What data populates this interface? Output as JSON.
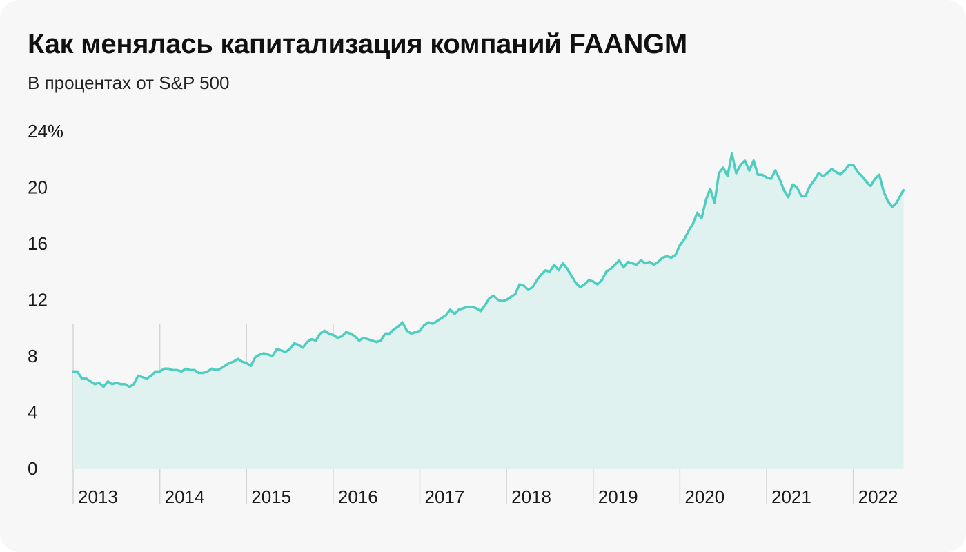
{
  "header": {
    "title": "Как менялась капитализация компаний FAANGM",
    "subtitle": "В процентах от S&P 500"
  },
  "chart_data": {
    "type": "area",
    "title": "Как менялась капитализация компаний FAANGM",
    "subtitle": "В процентах от S&P 500",
    "xlabel": "",
    "ylabel": "",
    "ylim": [
      0,
      24
    ],
    "y_ticks": [
      0,
      4,
      8,
      12,
      16,
      20,
      24
    ],
    "y_tick_labels": [
      "0",
      "4",
      "8",
      "12",
      "16",
      "20",
      "24%"
    ],
    "x_tick_labels": [
      "2013",
      "2014",
      "2015",
      "2016",
      "2017",
      "2018",
      "2019",
      "2020",
      "2021",
      "2022"
    ],
    "x_range": [
      2013.0,
      2022.6
    ],
    "grid": "vertical year separators",
    "colors": {
      "line": "#4ecdc0",
      "fill": "#dff2ef",
      "grid": "#d0d6d5"
    },
    "series": [
      {
        "x": [
          2013.0,
          2013.05,
          2013.1,
          2013.15,
          2013.2,
          2013.25,
          2013.3,
          2013.35,
          2013.4,
          2013.45,
          2013.5,
          2013.55,
          2013.6,
          2013.65,
          2013.7,
          2013.75,
          2013.8,
          2013.85,
          2013.9,
          2013.95,
          2014.0,
          2014.05,
          2014.1,
          2014.15,
          2014.2,
          2014.25,
          2014.3,
          2014.35,
          2014.4,
          2014.45,
          2014.5,
          2014.55,
          2014.6,
          2014.65,
          2014.7,
          2014.75,
          2014.8,
          2014.85,
          2014.9,
          2014.95,
          2015.0,
          2015.05,
          2015.1,
          2015.15,
          2015.2,
          2015.25,
          2015.3,
          2015.35,
          2015.4,
          2015.45,
          2015.5,
          2015.55,
          2015.6,
          2015.65,
          2015.7,
          2015.75,
          2015.8,
          2015.85,
          2015.9,
          2015.95,
          2016.0,
          2016.05,
          2016.1,
          2016.15,
          2016.2,
          2016.25,
          2016.3,
          2016.35,
          2016.4,
          2016.45,
          2016.5,
          2016.55,
          2016.6,
          2016.65,
          2016.7,
          2016.75,
          2016.8,
          2016.85,
          2016.9,
          2016.95,
          2017.0,
          2017.05,
          2017.1,
          2017.15,
          2017.2,
          2017.25,
          2017.3,
          2017.35,
          2017.4,
          2017.45,
          2017.5,
          2017.55,
          2017.6,
          2017.65,
          2017.7,
          2017.75,
          2017.8,
          2017.85,
          2017.9,
          2017.95,
          2018.0,
          2018.05,
          2018.1,
          2018.15,
          2018.2,
          2018.25,
          2018.3,
          2018.35,
          2018.4,
          2018.45,
          2018.5,
          2018.55,
          2018.6,
          2018.65,
          2018.7,
          2018.75,
          2018.8,
          2018.85,
          2018.9,
          2018.95,
          2019.0,
          2019.05,
          2019.1,
          2019.15,
          2019.2,
          2019.25,
          2019.3,
          2019.35,
          2019.4,
          2019.45,
          2019.5,
          2019.55,
          2019.6,
          2019.65,
          2019.7,
          2019.75,
          2019.8,
          2019.85,
          2019.9,
          2019.95,
          2020.0,
          2020.05,
          2020.1,
          2020.15,
          2020.2,
          2020.25,
          2020.3,
          2020.35,
          2020.4,
          2020.45,
          2020.5,
          2020.55,
          2020.6,
          2020.65,
          2020.7,
          2020.75,
          2020.8,
          2020.85,
          2020.9,
          2020.95,
          2021.0,
          2021.05,
          2021.1,
          2021.15,
          2021.2,
          2021.25,
          2021.3,
          2021.35,
          2021.4,
          2021.45,
          2021.5,
          2021.55,
          2021.6,
          2021.65,
          2021.7,
          2021.75,
          2021.8,
          2021.85,
          2021.9,
          2021.95,
          2022.0,
          2022.05,
          2022.1,
          2022.15,
          2022.2,
          2022.25,
          2022.3,
          2022.35,
          2022.4,
          2022.45,
          2022.5,
          2022.55,
          2022.58
        ],
        "values": [
          6.9,
          6.9,
          6.4,
          6.4,
          6.2,
          6.0,
          6.1,
          5.8,
          6.2,
          6.0,
          6.1,
          6.0,
          6.0,
          5.8,
          6.0,
          6.6,
          6.5,
          6.4,
          6.6,
          6.9,
          6.9,
          7.1,
          7.1,
          7.0,
          7.0,
          6.9,
          7.1,
          7.0,
          7.0,
          6.8,
          6.8,
          6.9,
          7.1,
          7.0,
          7.1,
          7.3,
          7.5,
          7.6,
          7.8,
          7.6,
          7.5,
          7.3,
          7.9,
          8.1,
          8.2,
          8.1,
          8.0,
          8.5,
          8.4,
          8.3,
          8.5,
          8.9,
          8.8,
          8.6,
          9.0,
          9.2,
          9.1,
          9.6,
          9.8,
          9.6,
          9.5,
          9.3,
          9.4,
          9.7,
          9.6,
          9.4,
          9.1,
          9.3,
          9.2,
          9.1,
          9.0,
          9.1,
          9.6,
          9.6,
          9.9,
          10.1,
          10.4,
          9.8,
          9.6,
          9.7,
          9.8,
          10.2,
          10.4,
          10.3,
          10.5,
          10.7,
          10.9,
          11.3,
          11.0,
          11.3,
          11.4,
          11.5,
          11.5,
          11.4,
          11.2,
          11.6,
          12.1,
          12.3,
          12.0,
          11.9,
          12.0,
          12.2,
          12.4,
          13.1,
          13.0,
          12.7,
          12.9,
          13.4,
          13.8,
          14.1,
          14.0,
          14.5,
          14.1,
          14.6,
          14.2,
          13.7,
          13.2,
          12.9,
          13.1,
          13.4,
          13.3,
          13.1,
          13.4,
          14.0,
          14.2,
          14.5,
          14.8,
          14.3,
          14.7,
          14.6,
          14.5,
          14.8,
          14.6,
          14.7,
          14.5,
          14.7,
          15.0,
          15.1,
          15.0,
          15.2,
          15.9,
          16.3,
          16.9,
          17.4,
          18.2,
          17.8,
          19.1,
          19.9,
          18.9,
          21.0,
          21.4,
          20.8,
          22.4,
          21.0,
          21.6,
          21.9,
          21.2,
          21.9,
          20.9,
          20.9,
          20.7,
          20.6,
          21.2,
          20.6,
          19.8,
          19.3,
          20.2,
          20.0,
          19.4,
          19.4,
          20.1,
          20.5,
          21.0,
          20.8,
          21.0,
          21.3,
          21.1,
          20.9,
          21.2,
          21.6,
          21.6,
          21.1,
          20.8,
          20.4,
          20.1,
          20.6,
          20.9,
          19.7,
          19.0,
          18.6,
          18.9,
          19.5,
          19.8
        ]
      }
    ]
  }
}
